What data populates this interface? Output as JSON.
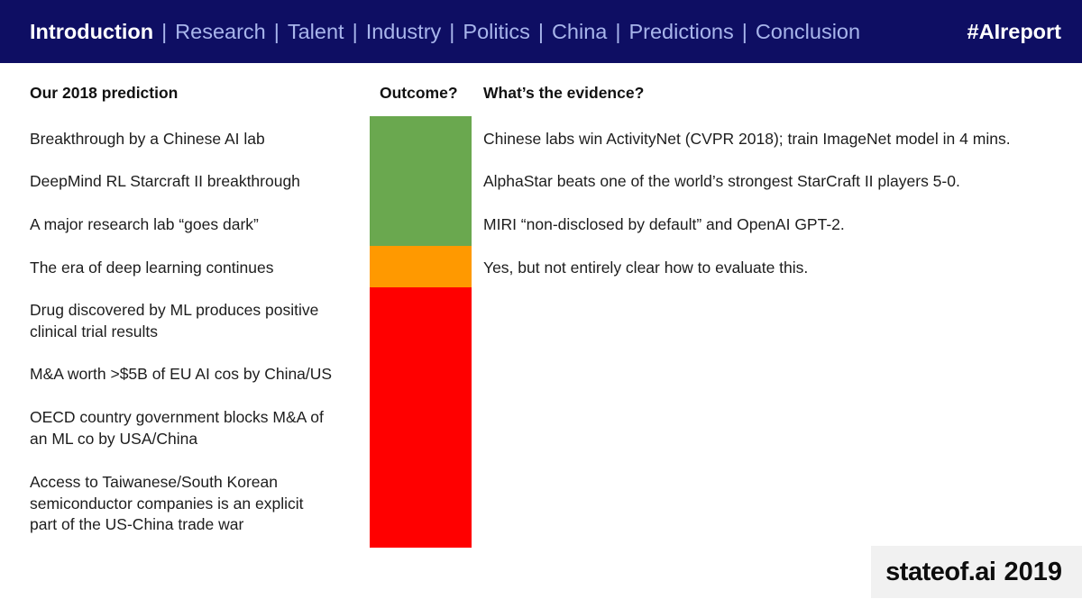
{
  "header": {
    "active_item": "Introduction",
    "separator": "|",
    "nav_items": [
      "Research",
      "Talent",
      "Industry",
      "Politics",
      "China",
      "Predictions",
      "Conclusion"
    ],
    "hashtag": "#AIreport",
    "colors": {
      "background": "#0e0e63",
      "active_text": "#ffffff",
      "inactive_text": "#a8b5eb"
    }
  },
  "table": {
    "columns": {
      "prediction": "Our 2018 prediction",
      "outcome": "Outcome?",
      "evidence": "What’s the evidence?"
    },
    "rows": [
      {
        "prediction": "Breakthrough by a Chinese AI lab",
        "outcome": "achieved",
        "evidence": "Chinese labs win ActivityNet (CVPR 2018); train ImageNet model in 4 mins."
      },
      {
        "prediction": "DeepMind RL Starcraft II breakthrough",
        "outcome": "achieved",
        "evidence": "AlphaStar beats one of the world’s strongest StarCraft II players 5-0."
      },
      {
        "prediction": "A major research lab “goes dark”",
        "outcome": "achieved",
        "evidence": "MIRI “non-disclosed by default” and OpenAI GPT-2."
      },
      {
        "prediction": "The era of deep learning continues",
        "outcome": "partial",
        "evidence": "Yes, but not entirely clear how to evaluate this."
      },
      {
        "prediction": "Drug discovered by ML produces positive\nclinical trial results",
        "outcome": "not-achieved",
        "evidence": ""
      },
      {
        "prediction": "M&A worth >$5B of EU AI cos by China/US",
        "outcome": "not-achieved",
        "evidence": ""
      },
      {
        "prediction": "OECD country government blocks M&A of\nan ML co by USA/China",
        "outcome": "not-achieved",
        "evidence": ""
      },
      {
        "prediction": "Access to Taiwanese/South Korean\nsemiconductor companies is an explicit\npart of the US-China trade war",
        "outcome": "not-achieved",
        "evidence": ""
      }
    ]
  },
  "outcome_bar": {
    "segments": [
      {
        "status": "achieved",
        "color": "#6aa84f"
      },
      {
        "status": "partial",
        "color": "#ff9900"
      },
      {
        "status": "not-achieved",
        "color": "#ff0000"
      }
    ]
  },
  "footer": {
    "logo_text": "stateof.ai",
    "year": "2019"
  }
}
